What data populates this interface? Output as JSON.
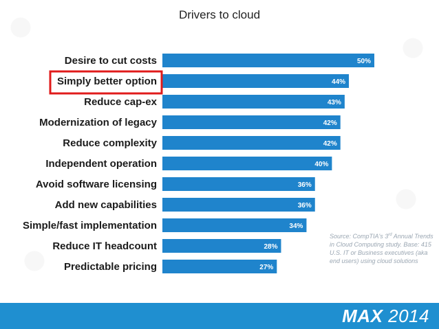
{
  "slide": {
    "title": "Drivers to cloud",
    "source_prefix": "Source: CompTIA's 3",
    "source_sup": "rd",
    "source_rest": " Annual Trends in Cloud Computing study. Base: 415 U.S. IT or Business executives (aka end users) using cloud solutions",
    "logo_max": "MAX",
    "logo_year": " 2014"
  },
  "chart_data": {
    "type": "bar",
    "orientation": "horizontal",
    "categories": [
      "Desire to cut costs",
      "Simply better option",
      "Reduce cap-ex",
      "Modernization of legacy",
      "Reduce complexity",
      "Independent operation",
      "Avoid software licensing",
      "Add new capabilities",
      "Simple/fast implementation",
      "Reduce IT headcount",
      "Predictable pricing"
    ],
    "values": [
      50,
      44,
      43,
      42,
      42,
      40,
      36,
      36,
      34,
      28,
      27
    ],
    "value_labels": [
      "50%",
      "44%",
      "43%",
      "42%",
      "42%",
      "40%",
      "36%",
      "36%",
      "34%",
      "28%",
      "27%"
    ],
    "highlighted_category": "Simply better option",
    "bar_color": "#1f84cc",
    "highlight_color": "#e01b1b",
    "grid": false,
    "legend": "none"
  }
}
